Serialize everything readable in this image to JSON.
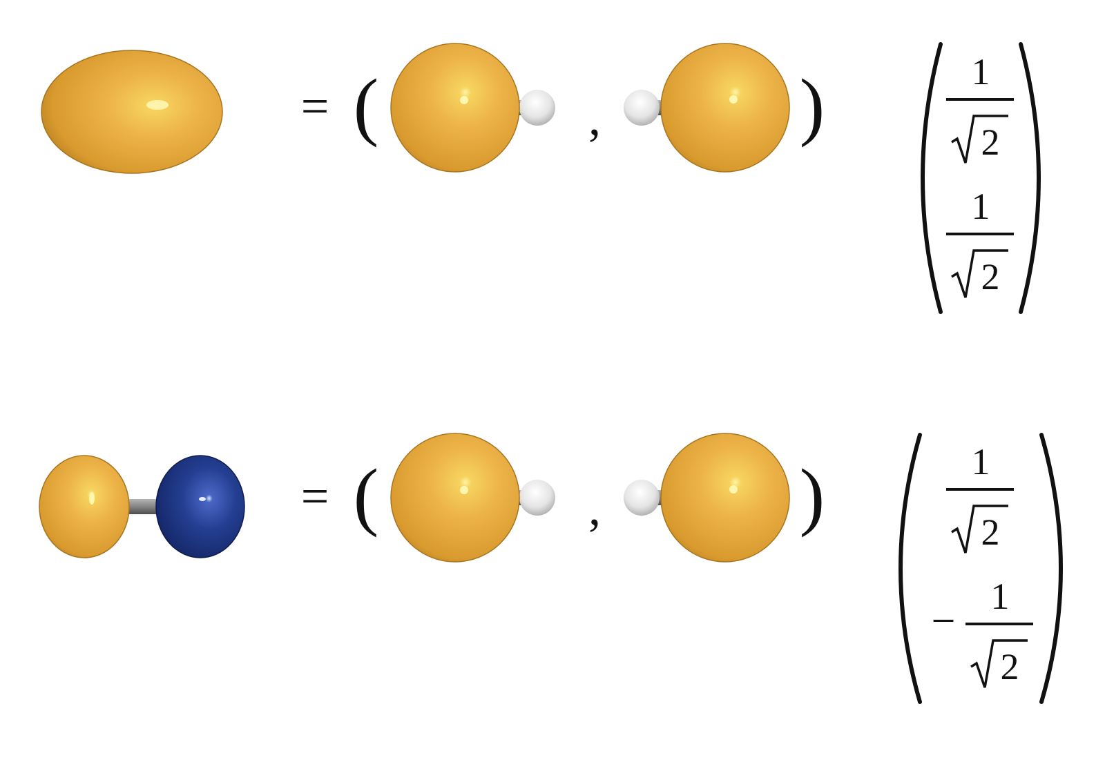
{
  "colors": {
    "orbital_positive": "#E8A93A",
    "orbital_negative": "#1F3A8A",
    "hydrogen_atom": "#E6E6E6",
    "bond": "#8A8A8A",
    "text": "#111111"
  },
  "equations": [
    {
      "id": "bonding",
      "molecular_orbital": "bonding-ellipsoid",
      "equals": "=",
      "open_paren": "(",
      "separator": ",",
      "close_paren": ")",
      "coefficients": [
        {
          "sign": "",
          "numerator": "1",
          "radical": "2"
        },
        {
          "sign": "",
          "numerator": "1",
          "radical": "2"
        }
      ]
    },
    {
      "id": "antibonding",
      "molecular_orbital": "antibonding-two-lobes",
      "equals": "=",
      "open_paren": "(",
      "separator": ",",
      "close_paren": ")",
      "coefficients": [
        {
          "sign": "",
          "numerator": "1",
          "radical": "2"
        },
        {
          "sign": "−",
          "numerator": "1",
          "radical": "2"
        }
      ]
    }
  ]
}
